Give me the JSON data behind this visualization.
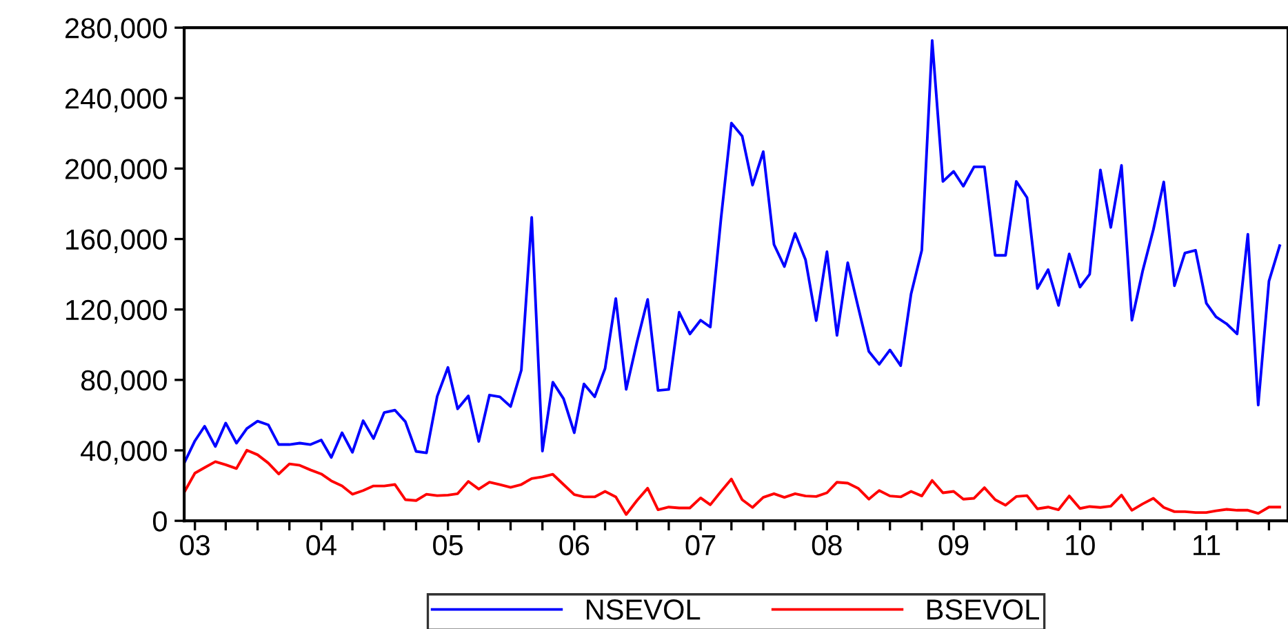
{
  "chart_data": {
    "type": "line",
    "x": [
      "2003-01",
      "2003-02",
      "2003-03",
      "2003-04",
      "2003-05",
      "2003-06",
      "2003-07",
      "2003-08",
      "2003-09",
      "2003-10",
      "2003-11",
      "2003-12",
      "2004-01",
      "2004-02",
      "2004-03",
      "2004-04",
      "2004-05",
      "2004-06",
      "2004-07",
      "2004-08",
      "2004-09",
      "2004-10",
      "2004-11",
      "2004-12",
      "2005-01",
      "2005-02",
      "2005-03",
      "2005-04",
      "2005-05",
      "2005-06",
      "2005-07",
      "2005-08",
      "2005-09",
      "2005-10",
      "2005-11",
      "2005-12",
      "2006-01",
      "2006-02",
      "2006-03",
      "2006-04",
      "2006-05",
      "2006-06",
      "2006-07",
      "2006-08",
      "2006-09",
      "2006-10",
      "2006-11",
      "2006-12",
      "2007-01",
      "2007-02",
      "2007-03",
      "2007-04",
      "2007-05",
      "2007-06",
      "2007-07",
      "2007-08",
      "2007-09",
      "2007-10",
      "2007-11",
      "2007-12",
      "2008-01",
      "2008-02",
      "2008-03",
      "2008-04",
      "2008-05",
      "2008-06",
      "2008-07",
      "2008-08",
      "2008-09",
      "2008-10",
      "2008-11",
      "2008-12",
      "2009-01",
      "2009-02",
      "2009-03",
      "2009-04",
      "2009-05",
      "2009-06",
      "2009-07",
      "2009-08",
      "2009-09",
      "2009-10",
      "2009-11",
      "2009-12",
      "2010-01",
      "2010-02",
      "2010-03",
      "2010-04",
      "2010-05",
      "2010-06",
      "2010-07",
      "2010-08",
      "2010-09",
      "2010-10",
      "2010-11",
      "2010-12",
      "2011-01",
      "2011-02",
      "2011-03",
      "2011-04",
      "2011-05",
      "2011-06",
      "2011-07",
      "2011-08",
      "2011-09"
    ],
    "series": [
      {
        "name": "NSEVOL",
        "color": "#0000ff",
        "values": [
          32800,
          45400,
          53700,
          42200,
          55500,
          44100,
          52400,
          56600,
          54500,
          43300,
          43300,
          44100,
          43300,
          45900,
          36000,
          50000,
          38900,
          56800,
          46700,
          61500,
          62800,
          56300,
          39400,
          38600,
          70700,
          87100,
          63600,
          70900,
          45100,
          71400,
          70400,
          64900,
          85500,
          172300,
          39600,
          78700,
          69300,
          50000,
          77700,
          70400,
          86500,
          126200,
          74600,
          101400,
          125700,
          74000,
          74600,
          118400,
          106100,
          113900,
          110000,
          171800,
          225800,
          218500,
          190600,
          209600,
          156900,
          144400,
          163200,
          148300,
          113700,
          152800,
          105300,
          146500,
          121500,
          96200,
          88900,
          97000,
          88100,
          128800,
          153600,
          272700,
          192700,
          198400,
          190000,
          201000,
          201000,
          150700,
          150700,
          192700,
          183500,
          131900,
          142600,
          122300,
          151500,
          132700,
          140000,
          199200,
          166600,
          201800,
          113900,
          141800,
          165300,
          192400,
          133500,
          152000,
          153600,
          123600,
          115800,
          111800,
          106100,
          162700,
          65700,
          136100,
          156200
        ]
      },
      {
        "name": "BSEVOL",
        "color": "#ff0000",
        "values": [
          16200,
          27100,
          30200,
          33600,
          31800,
          29700,
          40100,
          37500,
          32800,
          26600,
          32300,
          31500,
          28900,
          26600,
          22700,
          19800,
          15100,
          17200,
          19800,
          19800,
          20600,
          12000,
          11500,
          15100,
          14300,
          14600,
          15400,
          22400,
          18000,
          21900,
          20600,
          19000,
          20600,
          24000,
          25000,
          26400,
          20600,
          14900,
          13600,
          13600,
          16700,
          13600,
          3600,
          11500,
          18500,
          6300,
          7800,
          7300,
          7300,
          13000,
          9100,
          16700,
          23700,
          12000,
          7600,
          13300,
          15400,
          13300,
          15400,
          14100,
          13800,
          15900,
          21900,
          21400,
          18500,
          12300,
          17200,
          14100,
          13600,
          16700,
          14100,
          22900,
          15900,
          16700,
          12300,
          12800,
          18800,
          12000,
          8900,
          13800,
          14300,
          6800,
          7800,
          6300,
          14100,
          7000,
          8100,
          7600,
          8300,
          14600,
          6000,
          9600,
          12800,
          7600,
          5200,
          5200,
          4700,
          4700,
          5700,
          6500,
          6000,
          6000,
          4200,
          7800,
          7800
        ]
      }
    ],
    "xlim": [
      "2003-01",
      "2011-09-25"
    ],
    "xticks": [
      {
        "value": "2003-02",
        "label": "03"
      },
      {
        "value": "2003-05",
        "label": null
      },
      {
        "value": "2003-08",
        "label": null
      },
      {
        "value": "2003-11",
        "label": null
      },
      {
        "value": "2004-02",
        "label": "04"
      },
      {
        "value": "2004-05",
        "label": null
      },
      {
        "value": "2004-08",
        "label": null
      },
      {
        "value": "2004-11",
        "label": null
      },
      {
        "value": "2005-02",
        "label": "05"
      },
      {
        "value": "2005-05",
        "label": null
      },
      {
        "value": "2005-08",
        "label": null
      },
      {
        "value": "2005-11",
        "label": null
      },
      {
        "value": "2006-02",
        "label": "06"
      },
      {
        "value": "2006-05",
        "label": null
      },
      {
        "value": "2006-08",
        "label": null
      },
      {
        "value": "2006-11",
        "label": null
      },
      {
        "value": "2007-02",
        "label": "07"
      },
      {
        "value": "2007-05",
        "label": null
      },
      {
        "value": "2007-08",
        "label": null
      },
      {
        "value": "2007-11",
        "label": null
      },
      {
        "value": "2008-02",
        "label": "08"
      },
      {
        "value": "2008-05",
        "label": null
      },
      {
        "value": "2008-08",
        "label": null
      },
      {
        "value": "2008-11",
        "label": null
      },
      {
        "value": "2009-02",
        "label": "09"
      },
      {
        "value": "2009-05",
        "label": null
      },
      {
        "value": "2009-08",
        "label": null
      },
      {
        "value": "2009-11",
        "label": null
      },
      {
        "value": "2010-02",
        "label": "10"
      },
      {
        "value": "2010-05",
        "label": null
      },
      {
        "value": "2010-08",
        "label": null
      },
      {
        "value": "2010-11",
        "label": null
      },
      {
        "value": "2011-02",
        "label": "11"
      },
      {
        "value": "2011-05",
        "label": null
      },
      {
        "value": "2011-08",
        "label": null
      }
    ],
    "ylim": [
      0,
      280000
    ],
    "yticks": [
      {
        "value": 0,
        "label": "0"
      },
      {
        "value": 40000,
        "label": "40,000"
      },
      {
        "value": 80000,
        "label": "80,000"
      },
      {
        "value": 120000,
        "label": "120,000"
      },
      {
        "value": 160000,
        "label": "160,000"
      },
      {
        "value": 200000,
        "label": "200,000"
      },
      {
        "value": 240000,
        "label": "240,000"
      },
      {
        "value": 280000,
        "label": "280,000"
      }
    ],
    "grid": false,
    "legend": "bottom",
    "marker": "none",
    "line_style": "solid"
  }
}
